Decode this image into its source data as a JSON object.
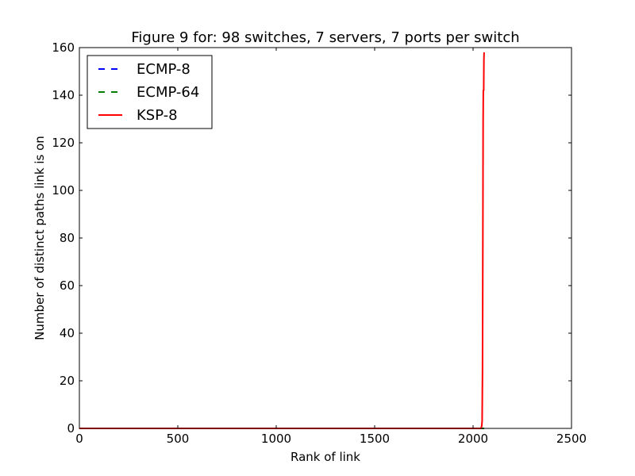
{
  "chart_data": {
    "type": "line",
    "title": "Figure 9 for: 98 switches, 7 servers, 7 ports per switch",
    "xlabel": "Rank of link",
    "ylabel": "Number of distinct paths link is on",
    "xlim": [
      0,
      2500
    ],
    "ylim": [
      0,
      160
    ],
    "xticks": [
      0,
      500,
      1000,
      1500,
      2000,
      2500
    ],
    "yticks": [
      0,
      20,
      40,
      60,
      80,
      100,
      120,
      140,
      160
    ],
    "grid": false,
    "legend_position": "top-left",
    "series": [
      {
        "name": "ECMP-8",
        "color": "#0000ff",
        "style": "dashed",
        "points": [
          [
            0,
            0
          ],
          [
            2058,
            0
          ]
        ]
      },
      {
        "name": "ECMP-64",
        "color": "#008000",
        "style": "dashed",
        "points": [
          [
            0,
            0
          ],
          [
            2058,
            0
          ]
        ]
      },
      {
        "name": "KSP-8",
        "color": "#ff0000",
        "style": "solid",
        "points": [
          [
            0,
            0
          ],
          [
            2040,
            0
          ],
          [
            2044,
            1
          ],
          [
            2046,
            3
          ],
          [
            2048,
            25
          ],
          [
            2050,
            90
          ],
          [
            2051,
            128
          ],
          [
            2052,
            142
          ],
          [
            2054,
            142
          ],
          [
            2055,
            155
          ],
          [
            2056,
            158
          ]
        ]
      }
    ]
  }
}
